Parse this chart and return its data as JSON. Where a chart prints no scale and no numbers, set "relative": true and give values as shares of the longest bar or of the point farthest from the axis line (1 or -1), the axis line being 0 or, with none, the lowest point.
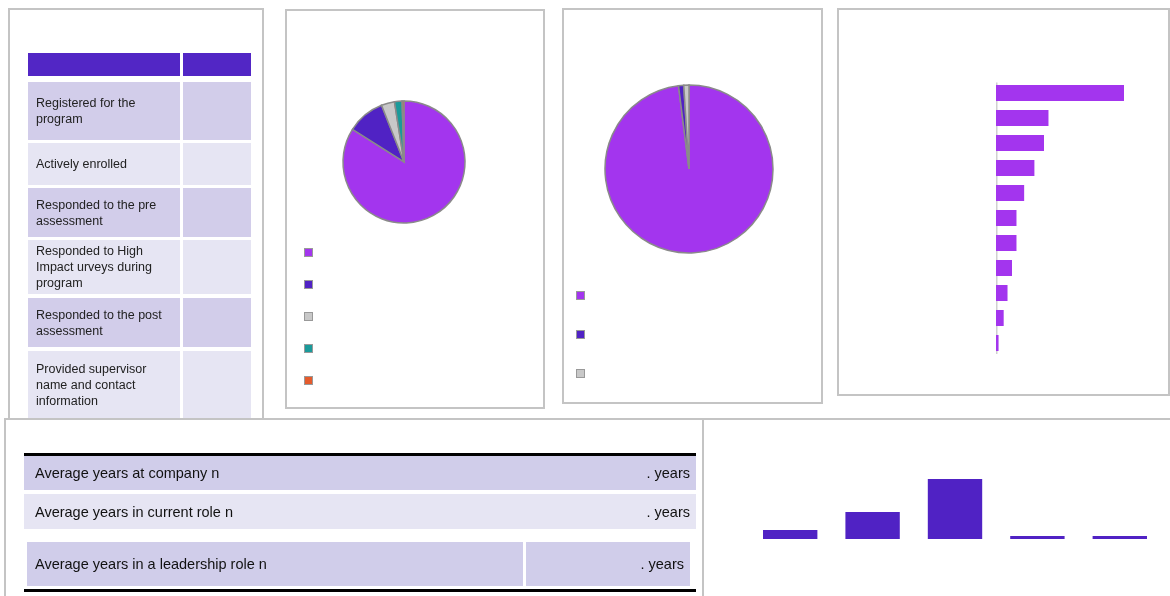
{
  "chart_data": [
    {
      "type": "other",
      "annotations": [
        "Registered for the program",
        "Actively  enrolled",
        "Responded to the pre assessment",
        "Responded to High Impact  urveys during program",
        "Responded to the post assessment",
        "Provided supervisor name and contact information"
      ]
    },
    {
      "type": "pie",
      "categories": [
        null,
        null,
        null,
        null,
        null
      ],
      "values": [
        84,
        10,
        3.5,
        2,
        0.5
      ],
      "colors": [
        "#a335ee",
        "#5022c4",
        "#c8c8c8",
        "#1a9a9a",
        "#e55b2c"
      ]
    },
    {
      "type": "pie",
      "categories": [
        null,
        null,
        null
      ],
      "values": [
        98,
        1,
        1
      ],
      "colors": [
        "#a335ee",
        "#5022c4",
        "#c8c8c8"
      ]
    },
    {
      "type": "bar",
      "orientation": "horizontal",
      "relative": true,
      "tick_labels": false,
      "categories": [
        null,
        null,
        null,
        null,
        null,
        null,
        null,
        null,
        null,
        null,
        null
      ],
      "values": [
        1,
        0.41,
        0.375,
        0.3,
        0.22,
        0.16,
        0.16,
        0.125,
        0.09,
        0.06,
        0.02
      ],
      "color": "#a335ee"
    },
    {
      "type": "other",
      "annotations": [
        "Average years at company  n",
        ". years",
        "Average years in current role  n",
        ". years",
        "Average years in a leadership role  n",
        ". years"
      ]
    },
    {
      "type": "bar",
      "relative": true,
      "tick_labels": false,
      "categories": [
        null,
        null,
        null,
        null,
        null
      ],
      "values": [
        0.15,
        0.45,
        1,
        0.05,
        0.05
      ],
      "color": "#5022c4"
    }
  ]
}
